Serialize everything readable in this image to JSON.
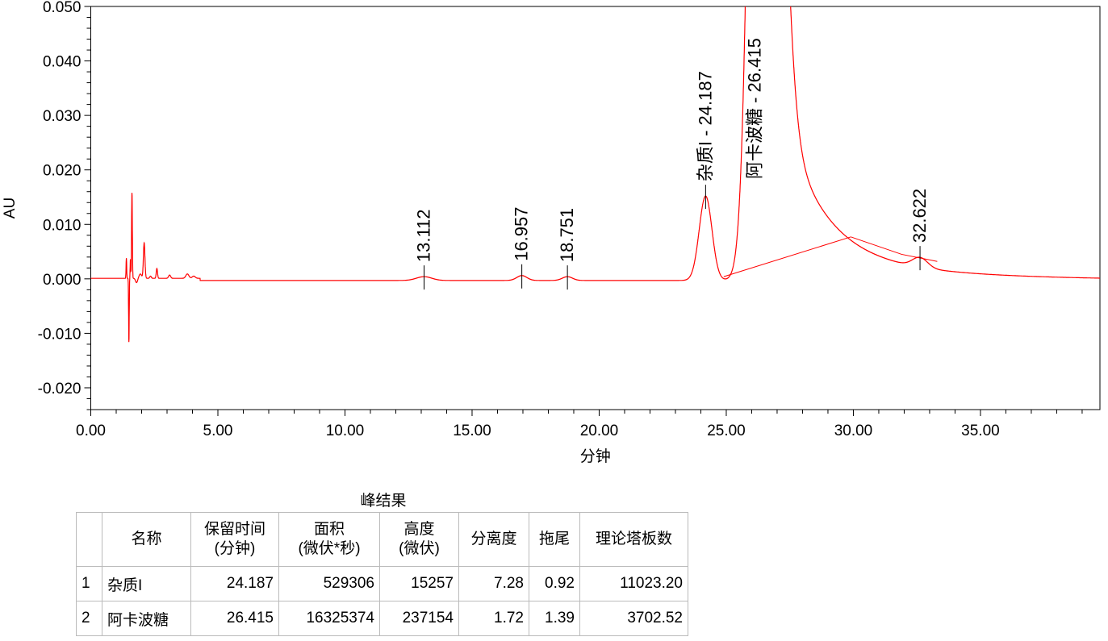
{
  "chart_data": {
    "type": "line",
    "xlabel": "分钟",
    "ylabel": "AU",
    "xlim": [
      0,
      39.7
    ],
    "ylim": [
      -0.024,
      0.05
    ],
    "x_ticks": [
      "0.00",
      "5.00",
      "10.00",
      "15.00",
      "20.00",
      "25.00",
      "30.00",
      "35.00"
    ],
    "y_ticks": [
      "0.050",
      "0.040",
      "0.030",
      "0.020",
      "0.010",
      "0.000",
      "-0.010",
      "-0.020"
    ],
    "line_color": "#ff0000",
    "peaks": [
      {
        "label": "13.112",
        "rt": 13.112,
        "height": 0.0007
      },
      {
        "label": "16.957",
        "rt": 16.957,
        "height": 0.0009
      },
      {
        "label": "18.751",
        "rt": 18.751,
        "height": 0.0007
      },
      {
        "label": "杂质I - 24.187",
        "rt": 24.187,
        "height": 0.0155
      },
      {
        "label": "阿卡波糖 - 26.415",
        "rt": 26.415,
        "height": 0.237
      },
      {
        "label": "32.622",
        "rt": 32.622,
        "height": 0.0018
      }
    ],
    "baseline_segments": [
      [
        [
          24.9,
          0.0004
        ],
        [
          29.9,
          0.0077
        ]
      ],
      [
        [
          29.9,
          0.0077
        ],
        [
          31.9,
          0.0045
        ],
        [
          33.3,
          0.0032
        ]
      ]
    ]
  },
  "table": {
    "title": "峰结果",
    "headers": [
      "",
      "名称",
      "保留时间\n(分钟)",
      "面积\n(微伏*秒)",
      "高度\n(微伏)",
      "分离度",
      "拖尾",
      "理论塔板数"
    ],
    "rows": [
      [
        "1",
        "杂质I",
        "24.187",
        "529306",
        "15257",
        "7.28",
        "0.92",
        "11023.20"
      ],
      [
        "2",
        "阿卡波糖",
        "26.415",
        "16325374",
        "237154",
        "1.72",
        "1.39",
        "3702.52"
      ]
    ]
  }
}
